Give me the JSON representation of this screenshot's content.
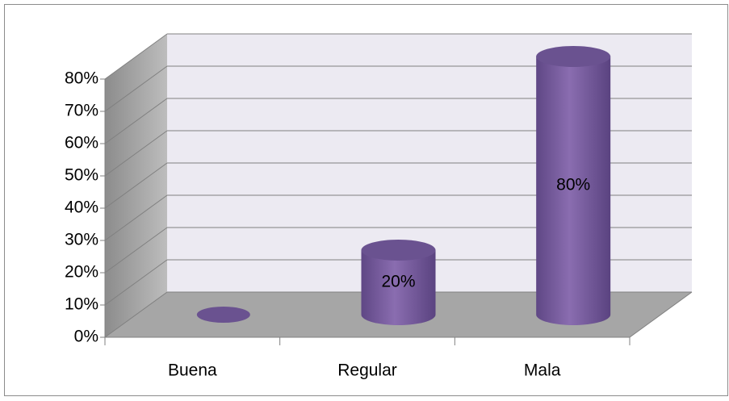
{
  "chart_data": {
    "type": "bar3d",
    "categories": [
      "Buena",
      "Regular",
      "Mala"
    ],
    "values": [
      0,
      20,
      80
    ],
    "value_labels": [
      null,
      "20%",
      "80%"
    ],
    "color": "#8064a2",
    "ylim": [
      0,
      80
    ],
    "yticks": [
      {
        "value": 0,
        "label": "0%"
      },
      {
        "value": 10,
        "label": "10%"
      },
      {
        "value": 20,
        "label": "20%"
      },
      {
        "value": 30,
        "label": "30%"
      },
      {
        "value": 40,
        "label": "40%"
      },
      {
        "value": 50,
        "label": "50%"
      },
      {
        "value": 60,
        "label": "60%"
      },
      {
        "value": 70,
        "label": "70%"
      },
      {
        "value": 80,
        "label": "80%"
      }
    ],
    "grid": true
  }
}
